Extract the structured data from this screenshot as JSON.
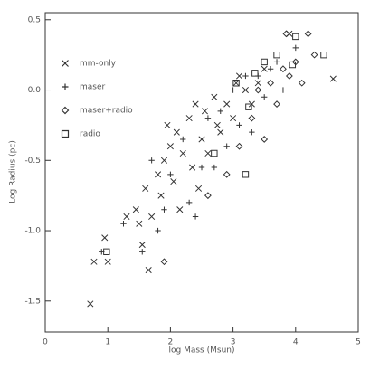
{
  "chart_data": {
    "type": "scatter",
    "xlabel": "log Mass (Msun)",
    "ylabel": "Log Radius (pc)",
    "xlim": [
      0,
      5
    ],
    "ylim": [
      -1.72,
      0.55
    ],
    "xticks": [
      0,
      1,
      2,
      3,
      4,
      5
    ],
    "yticks": [
      0.5,
      {
        "value": 0,
        "label": "0.0"
      },
      -0.5,
      {
        "value": -1,
        "label": "-1.0"
      },
      -1.5
    ],
    "legend": "upper left",
    "series": [
      {
        "name": "mm-only",
        "color": "#333333",
        "marker": "x",
        "x": [
          0.72,
          0.78,
          1.0,
          0.95,
          1.3,
          1.45,
          1.55,
          1.6,
          1.7,
          1.8,
          1.85,
          1.9,
          2.0,
          2.05,
          2.1,
          2.2,
          2.3,
          2.35,
          2.4,
          2.5,
          2.55,
          2.6,
          2.7,
          2.75,
          2.8,
          2.9,
          3.0,
          3.05,
          3.1,
          3.2,
          3.3,
          3.4,
          3.5,
          3.9,
          4.6,
          1.65,
          1.5,
          2.15,
          1.95,
          2.45
        ],
        "y": [
          -1.52,
          -1.22,
          -1.22,
          -1.05,
          -0.9,
          -0.85,
          -1.1,
          -0.7,
          -0.9,
          -0.6,
          -0.75,
          -0.5,
          -0.4,
          -0.65,
          -0.3,
          -0.45,
          -0.2,
          -0.55,
          -0.1,
          -0.35,
          -0.15,
          -0.45,
          -0.05,
          -0.25,
          -0.3,
          -0.1,
          -0.2,
          0.05,
          0.1,
          0.0,
          -0.1,
          0.05,
          0.15,
          0.4,
          0.08,
          -1.28,
          -0.95,
          -0.85,
          -0.25,
          -0.7
        ]
      },
      {
        "name": "maser",
        "color": "#333333",
        "marker": "plus",
        "x": [
          0.9,
          1.25,
          1.55,
          1.7,
          1.9,
          2.0,
          2.2,
          2.3,
          2.5,
          2.6,
          2.7,
          2.8,
          2.9,
          3.0,
          3.1,
          3.2,
          3.3,
          3.4,
          3.5,
          3.6,
          3.7,
          3.8,
          4.0,
          2.4,
          1.8
        ],
        "y": [
          -1.15,
          -0.95,
          -1.15,
          -0.5,
          -0.85,
          -0.6,
          -0.35,
          -0.8,
          -0.55,
          -0.2,
          -0.55,
          -0.15,
          -0.4,
          0.0,
          -0.25,
          0.1,
          -0.3,
          0.1,
          -0.05,
          0.15,
          0.2,
          0.0,
          0.3,
          -0.9,
          -1.0
        ]
      },
      {
        "name": "maser+radio",
        "color": "#333333",
        "marker": "diamond",
        "x": [
          1.9,
          2.6,
          2.9,
          3.1,
          3.3,
          3.4,
          3.5,
          3.6,
          3.7,
          3.8,
          3.9,
          4.0,
          4.1,
          4.2,
          4.3,
          3.85
        ],
        "y": [
          -1.22,
          -0.75,
          -0.6,
          -0.4,
          -0.2,
          0.0,
          -0.35,
          0.05,
          -0.1,
          0.15,
          0.1,
          0.2,
          0.05,
          0.4,
          0.25,
          0.4
        ]
      },
      {
        "name": "radio",
        "color": "#333333",
        "marker": "square",
        "x": [
          0.98,
          2.7,
          3.05,
          3.2,
          3.35,
          3.5,
          3.7,
          3.95,
          4.0,
          4.45,
          3.25
        ],
        "y": [
          -1.15,
          -0.45,
          0.05,
          -0.6,
          0.12,
          0.2,
          0.25,
          0.18,
          0.38,
          0.25,
          -0.12
        ]
      }
    ]
  }
}
